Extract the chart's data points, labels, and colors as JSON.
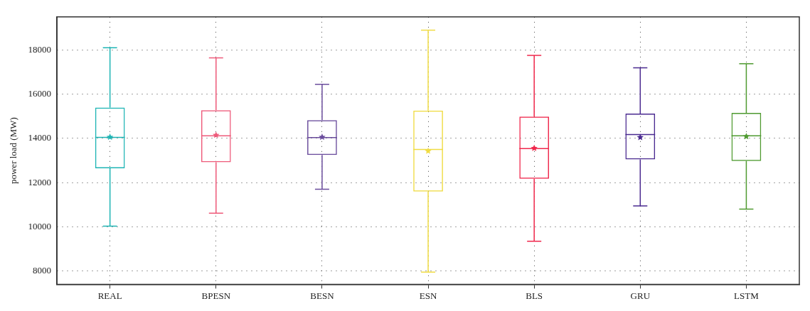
{
  "chart_data": {
    "type": "box",
    "ylabel": "power load (MW)",
    "categories": [
      "REAL",
      "BPESN",
      "BESN",
      "ESN",
      "BLS",
      "GRU",
      "LSTM"
    ],
    "colors": [
      "#1fb5b5",
      "#ee5a7a",
      "#6a4c9c",
      "#f0dc44",
      "#f0284c",
      "#4a2a90",
      "#4f9a30"
    ],
    "boxes": [
      {
        "low": 10030,
        "q1": 12650,
        "median": 14050,
        "q3": 15400,
        "high": 18100,
        "mean": 14060
      },
      {
        "low": 10620,
        "q1": 12920,
        "median": 14120,
        "q3": 15280,
        "high": 17650,
        "mean": 14150
      },
      {
        "low": 11700,
        "q1": 13250,
        "median": 14040,
        "q3": 14830,
        "high": 16450,
        "mean": 14060
      },
      {
        "low": 7950,
        "q1": 11600,
        "median": 13500,
        "q3": 15260,
        "high": 18900,
        "mean": 13430
      },
      {
        "low": 9350,
        "q1": 12180,
        "median": 13540,
        "q3": 14990,
        "high": 17760,
        "mean": 13560
      },
      {
        "low": 10950,
        "q1": 13050,
        "median": 14180,
        "q3": 15120,
        "high": 17200,
        "mean": 14050
      },
      {
        "low": 10800,
        "q1": 12980,
        "median": 14120,
        "q3": 15160,
        "high": 17380,
        "mean": 14090
      }
    ],
    "ylim": [
      7400,
      19500
    ],
    "yticks": [
      8000,
      10000,
      12000,
      14000,
      16000,
      18000
    ],
    "grid": true,
    "marker": "star",
    "legend": false
  }
}
